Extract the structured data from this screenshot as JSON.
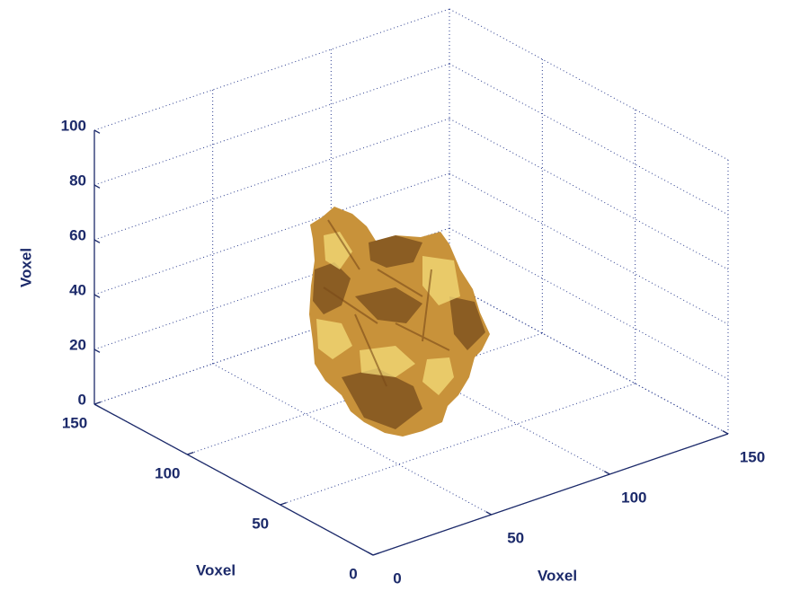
{
  "chart_data": {
    "type": "isosurface",
    "xlabel": "Voxel",
    "ylabel": "Voxel",
    "zlabel": "Voxel",
    "xlim": [
      0,
      150
    ],
    "ylim": [
      0,
      150
    ],
    "zlim": [
      0,
      100
    ],
    "xticks": [
      0,
      50,
      100,
      150
    ],
    "yticks": [
      0,
      50,
      100,
      150
    ],
    "zticks": [
      0,
      20,
      40,
      60,
      80,
      100
    ],
    "grid": true,
    "color": "#c8923a"
  }
}
